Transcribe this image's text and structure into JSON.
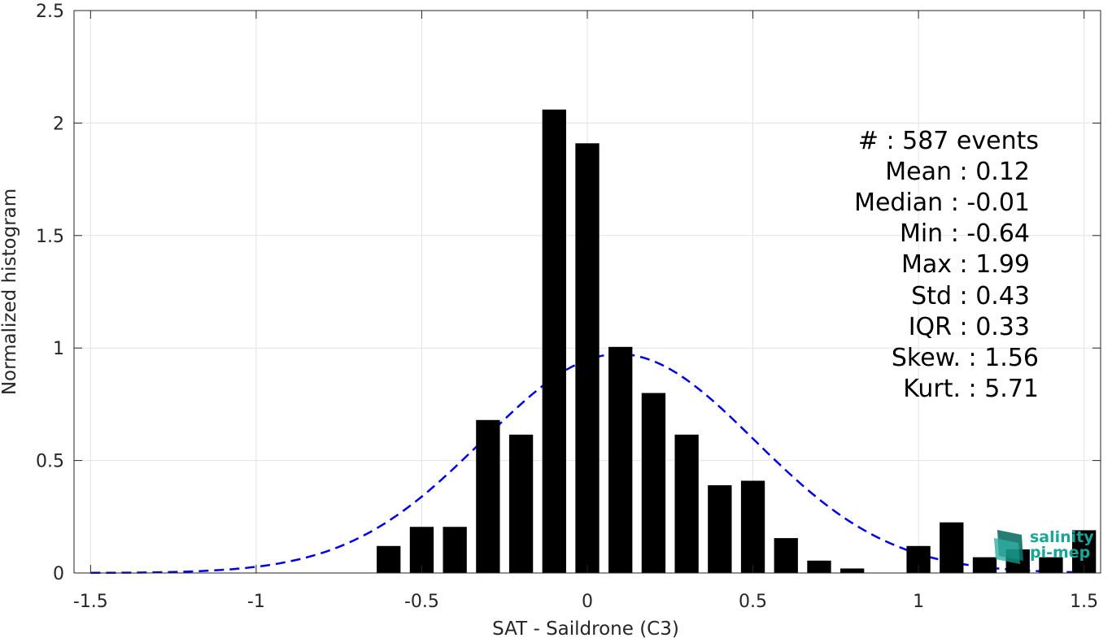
{
  "chart_data": {
    "type": "bar",
    "xlabel": "SAT - Saildrone (C3)",
    "ylabel": "Normalized histogram",
    "xlim": [
      -1.55,
      1.55
    ],
    "ylim": [
      0,
      2.5
    ],
    "xticks": [
      -1.5,
      -1,
      -0.5,
      0,
      0.5,
      1,
      1.5
    ],
    "xtick_labels": [
      "-1.5",
      "-1",
      "-0.5",
      "0",
      "0.5",
      "1",
      "1.5"
    ],
    "yticks": [
      0,
      0.5,
      1,
      1.5,
      2,
      2.5
    ],
    "ytick_labels": [
      "0",
      "0.5",
      "1",
      "1.5",
      "2",
      "2.5"
    ],
    "grid": true,
    "bin_width": 0.1,
    "bar_color": "#000000",
    "bars": {
      "centers": [
        -0.6,
        -0.5,
        -0.4,
        -0.3,
        -0.2,
        -0.1,
        0.0,
        0.1,
        0.2,
        0.3,
        0.4,
        0.5,
        0.6,
        0.7,
        0.8,
        1.0,
        1.1,
        1.2,
        1.3,
        1.4,
        1.5
      ],
      "values": [
        0.12,
        0.205,
        0.205,
        0.68,
        0.615,
        2.06,
        1.91,
        1.005,
        0.8,
        0.615,
        0.39,
        0.41,
        0.155,
        0.055,
        0.02,
        0.12,
        0.225,
        0.07,
        0.105,
        0.07,
        0.19
      ]
    },
    "fit": {
      "type": "gaussian",
      "style": "dashed",
      "color": "#0000e6",
      "mean": 0.095,
      "std": 0.41,
      "x_range": [
        -1.5,
        1.5
      ]
    },
    "stats_box": [
      {
        "key": "#",
        "value": "587 events"
      },
      {
        "key": "Mean",
        "value": "0.12"
      },
      {
        "key": "Median",
        "value": "-0.01"
      },
      {
        "key": "Min",
        "value": "-0.64"
      },
      {
        "key": "Max",
        "value": "1.99"
      },
      {
        "key": "Std",
        "value": "0.43"
      },
      {
        "key": "IQR",
        "value": "0.33"
      },
      {
        "key": "Skew.",
        "value": "1.56"
      },
      {
        "key": "Kurt.",
        "value": "5.71"
      }
    ]
  },
  "stats": {
    "count": "#  : 587 events",
    "mean": "Mean : 0.12",
    "median": "Median : -0.01",
    "min": "Min : -0.64",
    "max": "Max : 1.99",
    "std": "Std : 0.43",
    "iqr": "IQR : 0.33",
    "skew": "Skew. : 1.56",
    "kurt": "Kurt. : 5.71"
  },
  "logo": {
    "line1": "salinity",
    "line2": "pi-mep",
    "colors": [
      "#1aa597",
      "#0f6f66"
    ]
  }
}
